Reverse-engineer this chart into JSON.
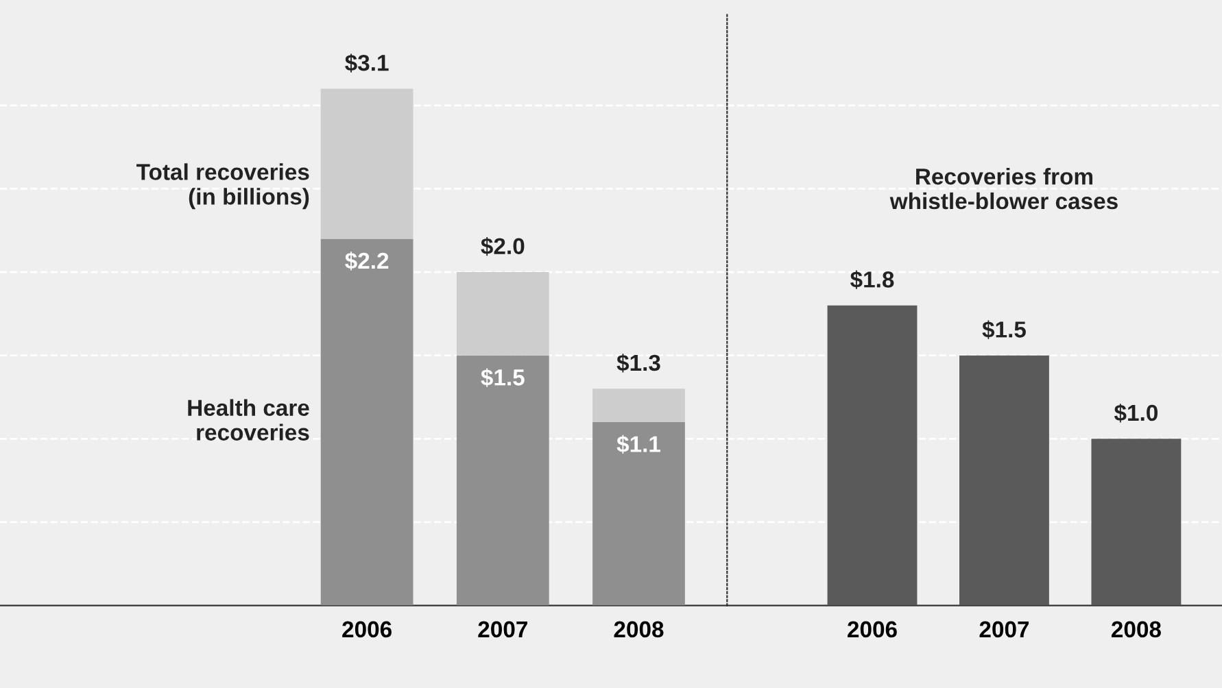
{
  "chart_data": [
    {
      "type": "bar",
      "stacked": true,
      "categories": [
        "2006",
        "2007",
        "2008"
      ],
      "series": [
        {
          "name": "Health care\nrecoveries",
          "color": "#8f8f8f",
          "values": [
            2.2,
            1.5,
            1.1
          ],
          "value_labels": [
            "$2.2",
            "$1.5",
            "$1.1"
          ]
        },
        {
          "name": "Total recoveries\n(in billions)",
          "color": "#cdcdcd",
          "values": [
            0.9,
            0.5,
            0.2
          ]
        }
      ],
      "totals": [
        "$3.1",
        "$2.0",
        "$1.3"
      ],
      "yticks": [
        {
          "value": 0.5,
          "label": null
        },
        {
          "value": 1.0,
          "label": null
        },
        {
          "value": 1.5,
          "label": null
        },
        {
          "value": 2.0,
          "label": null
        },
        {
          "value": 2.5,
          "label": null
        },
        {
          "value": 3.0,
          "label": null
        }
      ],
      "grid": "y",
      "tick_labels": "x"
    },
    {
      "type": "bar",
      "title": "Recoveries from\nwhistle-blower cases",
      "categories": [
        "2006",
        "2007",
        "2008"
      ],
      "series": [
        {
          "color": "#5a5a5a",
          "values": [
            1.8,
            1.5,
            1.0
          ],
          "value_labels": [
            "$1.8",
            "$1.5",
            "$1.0"
          ]
        }
      ],
      "yticks": [
        {
          "value": 0.5,
          "label": null
        },
        {
          "value": 1.0,
          "label": null
        },
        {
          "value": 1.5,
          "label": null
        },
        {
          "value": 2.0,
          "label": null
        },
        {
          "value": 2.5,
          "label": null
        },
        {
          "value": 3.0,
          "label": null
        }
      ],
      "grid": "y",
      "tick_labels": "x"
    }
  ]
}
